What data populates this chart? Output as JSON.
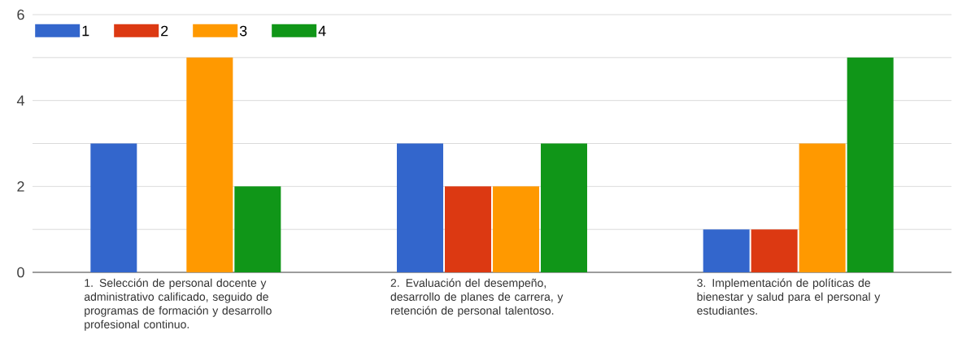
{
  "chart_data": {
    "type": "bar",
    "categories": [
      "1. Selección de personal docente y administrativo calificado, seguido de programas de formación y desarrollo profesional continuo.",
      "2. Evaluación del desempeño, desarrollo de planes de carrera, y retención de personal talentoso.",
      "3. Implementación de políticas de bienestar y salud para el personal y estudiantes."
    ],
    "series": [
      {
        "name": "1",
        "color": "#3366cc",
        "values": [
          3,
          3,
          1
        ]
      },
      {
        "name": "2",
        "color": "#dc3912",
        "values": [
          0,
          2,
          1
        ]
      },
      {
        "name": "3",
        "color": "#ff9900",
        "values": [
          5,
          2,
          3
        ]
      },
      {
        "name": "4",
        "color": "#109618",
        "values": [
          2,
          3,
          5
        ]
      }
    ],
    "ylim": [
      0,
      6
    ],
    "yticks": [
      0,
      {
        "value": 1,
        "label": null
      },
      2,
      {
        "value": 3,
        "label": null
      },
      4,
      {
        "value": 5,
        "label": null
      },
      6
    ],
    "grid": "y",
    "legend": "top left"
  }
}
